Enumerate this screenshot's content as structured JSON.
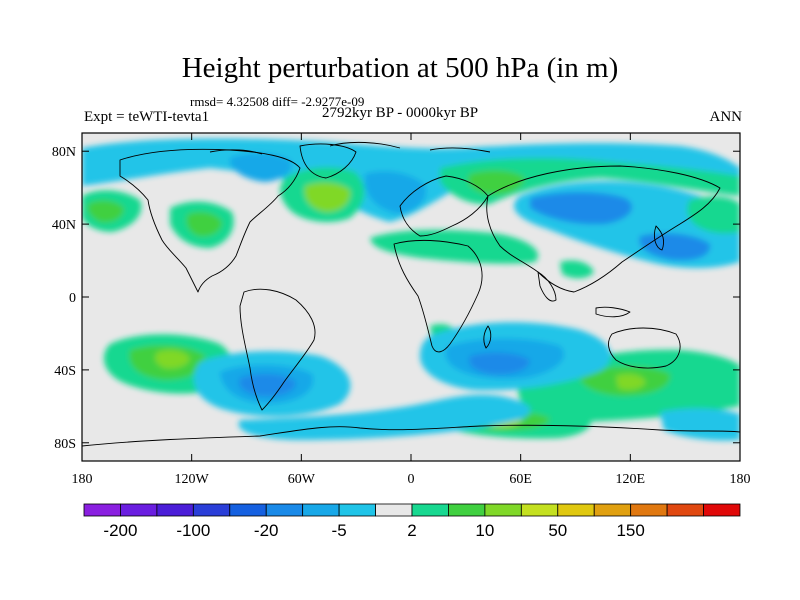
{
  "title": "Height perturbation at 500 hPa (in m)",
  "stats": "rmsd= 4.32508 diff= -2.9277e-09",
  "experiment": "Expt = teWTI-tevta1",
  "period": "2792kyr BP - 0000kyr BP",
  "season": "ANN",
  "axes": {
    "lon_ticks": [
      {
        "value": -180,
        "label": "180"
      },
      {
        "value": -120,
        "label": "120W"
      },
      {
        "value": -60,
        "label": "60W"
      },
      {
        "value": 0,
        "label": "0"
      },
      {
        "value": 60,
        "label": "60E"
      },
      {
        "value": 120,
        "label": "120E"
      },
      {
        "value": 180,
        "label": "180"
      }
    ],
    "lat_ticks": [
      {
        "value": 80,
        "label": "80N"
      },
      {
        "value": 40,
        "label": "40N"
      },
      {
        "value": 0,
        "label": "0"
      },
      {
        "value": -40,
        "label": "40S"
      },
      {
        "value": -80,
        "label": "80S"
      }
    ],
    "lon_range": [
      -180,
      180
    ],
    "lat_range": [
      -90,
      90
    ]
  },
  "colorbar": {
    "colors": [
      "#8a1fe0",
      "#6a1ee0",
      "#4b1ed8",
      "#2a3ed8",
      "#1560e0",
      "#1a8ae8",
      "#18a8e8",
      "#20c4e8",
      "#e8e8e8",
      "#18d890",
      "#40d040",
      "#80d828",
      "#c4e020",
      "#e0c810",
      "#e0a010",
      "#e07810",
      "#e04810",
      "#e00808"
    ],
    "labels": [
      {
        "after_box": 1,
        "text": "-200"
      },
      {
        "after_box": 3,
        "text": "-100"
      },
      {
        "after_box": 5,
        "text": "-20"
      },
      {
        "after_box": 7,
        "text": "-5"
      },
      {
        "after_box": 9,
        "text": "2"
      },
      {
        "after_box": 11,
        "text": "10"
      },
      {
        "after_box": 13,
        "text": "50"
      },
      {
        "after_box": 15,
        "text": "150"
      }
    ]
  }
}
